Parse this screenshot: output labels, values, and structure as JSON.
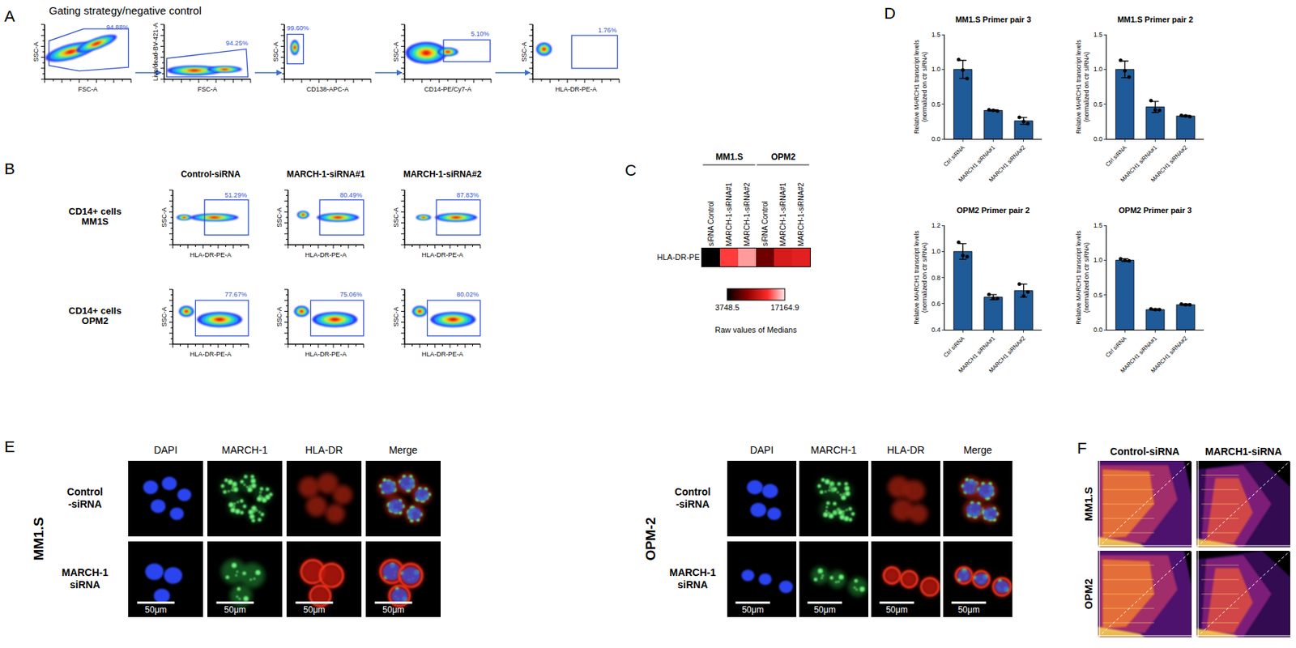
{
  "figure": {
    "A": {
      "label": "A",
      "title": "Gating strategy/negative control",
      "plots": [
        {
          "x_label": "FSC-A",
          "y_label": "SSC-A",
          "gate": "94.88%"
        },
        {
          "x_label": "FSC-A",
          "y_label": "Live/dead-BV-421-A",
          "gate": "94.25%"
        },
        {
          "x_label": "CD138-APC-A",
          "y_label": "SSC-A",
          "gate": "99.60%"
        },
        {
          "x_label": "CD14-PE/Cy7-A",
          "y_label": "SSC-A",
          "gate": "5.10%"
        },
        {
          "x_label": "HLA-DR-PE-A",
          "y_label": "SSC-A",
          "gate": "1.76%"
        }
      ]
    },
    "B": {
      "label": "B",
      "columns": [
        "Control-siRNA",
        "MARCH-1-siRNA#1",
        "MARCH-1-siRNA#2"
      ],
      "x_label": "HLA-DR-PE-A",
      "y_label": "SSC-A",
      "rows": [
        {
          "label": [
            "CD14+ cells",
            "MM1S"
          ],
          "gates": [
            "51.29%",
            "80.49%",
            "87.83%"
          ]
        },
        {
          "label": [
            "CD14+ cells",
            "OPM2"
          ],
          "gates": [
            "77.67%",
            "75.06%",
            "80.02%"
          ]
        }
      ]
    },
    "C": {
      "label": "C"
    },
    "D": {
      "label": "D"
    },
    "E": {
      "label": "E",
      "columns": [
        "DAPI",
        "MARCH-1",
        "HLA-DR",
        "Merge"
      ],
      "blocks": [
        {
          "cell_line": "MM1.S",
          "rows": [
            [
              "Control",
              "-siRNA"
            ],
            [
              "MARCH-1",
              "siRNA"
            ]
          ]
        },
        {
          "cell_line": "OPM-2",
          "rows": [
            [
              "Control",
              "-siRNA"
            ],
            [
              "MARCH-1",
              "siRNA"
            ]
          ]
        }
      ],
      "scale_bar": "50μm"
    },
    "F": {
      "label": "F",
      "columns": [
        "Control-siRNA",
        "MARCH1-siRNA"
      ],
      "rows": [
        "MM1.S",
        "OPM2"
      ]
    }
  },
  "chart_data": [
    {
      "type": "heatmap",
      "groups": [
        {
          "name": "MM1.S",
          "categories": [
            "siRNA Control",
            "MARCH-1-siRNA#1",
            "MARCH-1-siRNA#2"
          ]
        },
        {
          "name": "OPM2",
          "categories": [
            "siRNA Control",
            "MARCH-1-siRNA#1",
            "MARCH-1-siRNA#2"
          ]
        }
      ],
      "rows": [
        "HLA-DR-PE"
      ],
      "cells": [
        [
          3748.5,
          13500,
          15500,
          7500,
          11500,
          12000
        ]
      ],
      "colorbar": {
        "range": [
          3748.5,
          17164.9
        ],
        "ticks": [
          3748.5,
          17164.9
        ],
        "title": "Raw values of Medians"
      }
    },
    {
      "type": "bar",
      "title": "MM1.S Primer pair 3",
      "y_label": [
        "Relative MARCH1 transcript levels",
        "(normalized on ctr siRNA)"
      ],
      "categories": [
        "Ctrl siRNA",
        "MARCH1 siRNA#1",
        "MARCH1 siRNA#2"
      ],
      "values": [
        1.0,
        0.41,
        0.26
      ],
      "error": [
        0.13,
        0.01,
        0.05
      ],
      "points": [
        [
          1.14,
          0.99,
          0.87
        ],
        [
          0.42,
          0.41,
          0.4
        ],
        [
          0.31,
          0.25,
          0.22
        ]
      ],
      "color": "#1f5b98",
      "ylim": [
        0,
        1.5
      ],
      "yticks": [
        {
          "value": 0,
          "label": "0.0"
        },
        0.5,
        {
          "value": 1,
          "label": "1.0"
        },
        1.5
      ]
    },
    {
      "type": "bar",
      "title": "MM1.S Primer pair 2",
      "y_label": [
        "Relative MARCH1 transcript levels",
        "(normalized on ctr siRNA)"
      ],
      "categories": [
        "Ctrl siRNA",
        "MARCH1 siRNA#1",
        "MARCH1 siRNA#2"
      ],
      "values": [
        1.0,
        0.46,
        0.33
      ],
      "error": [
        0.12,
        0.08,
        0.01
      ],
      "points": [
        [
          1.13,
          0.98,
          0.89
        ],
        [
          0.55,
          0.42,
          0.41
        ],
        [
          0.34,
          0.33,
          0.32
        ]
      ],
      "color": "#1f5b98",
      "ylim": [
        0,
        1.5
      ],
      "yticks": [
        {
          "value": 0,
          "label": "0.0"
        },
        0.5,
        {
          "value": 1,
          "label": "1.0"
        },
        1.5
      ]
    },
    {
      "type": "bar",
      "title": "OPM2 Primer pair 2",
      "y_label": [
        "Relative MARCH1 transcript levels",
        "(normalized on ctr siRNA)"
      ],
      "categories": [
        "Ctrl siRNA",
        "MARCH1 siRNA#1",
        "MARCH1 siRNA#2"
      ],
      "values": [
        1.0,
        0.65,
        0.7
      ],
      "error": [
        0.06,
        0.02,
        0.05
      ],
      "points": [
        [
          1.07,
          0.97,
          0.96
        ],
        [
          0.67,
          0.64,
          0.64
        ],
        [
          0.75,
          0.66,
          0.69
        ]
      ],
      "color": "#1f5b98",
      "ylim": [
        0.4,
        1.2
      ],
      "yticks": [
        0.4,
        0.6,
        0.8,
        {
          "value": 1,
          "label": "1.0"
        },
        1.2
      ]
    },
    {
      "type": "bar",
      "title": "OPM2 Primer pair 3",
      "y_label": [
        "Relative MARCH1 transcript levels",
        "(normalized on ctr siRNA)"
      ],
      "categories": [
        "Ctrl siRNA",
        "MARCH1 siRNA#1",
        "MARCH1 siRNA#2"
      ],
      "values": [
        1.0,
        0.29,
        0.36
      ],
      "error": [
        0.02,
        0.01,
        0.01
      ],
      "points": [
        [
          1.02,
          1.0,
          0.99
        ],
        [
          0.3,
          0.29,
          0.29
        ],
        [
          0.37,
          0.36,
          0.36
        ]
      ],
      "color": "#1f5b98",
      "ylim": [
        0,
        1.5
      ],
      "yticks": [
        {
          "value": 0,
          "label": "0.0"
        },
        0.5,
        {
          "value": 1,
          "label": "1.0"
        },
        1.5
      ]
    }
  ]
}
